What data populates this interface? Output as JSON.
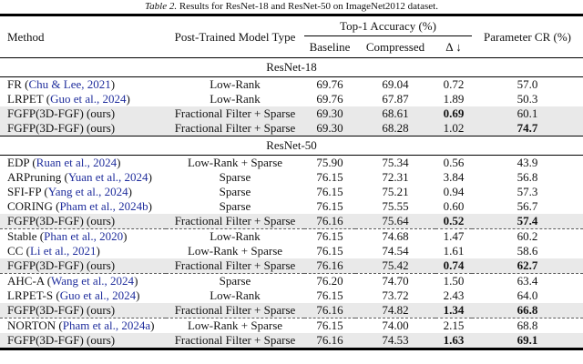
{
  "caption": {
    "label": "Table 2.",
    "text": "Results for ResNet-18 and ResNet-50 on ImageNet2012 dataset."
  },
  "colors": {
    "citation_link": "#1F2D9C",
    "highlight_row": "#E9E9E9",
    "rule": "#000000"
  },
  "table": {
    "columns": {
      "method": "Method",
      "type": "Post-Trained Model Type",
      "top1_group": "Top-1 Accuracy (%)",
      "baseline": "Baseline",
      "compressed": "Compressed",
      "delta": "Δ ↓",
      "cr": "Parameter CR (%)"
    },
    "sections": [
      {
        "title": "ResNet-18",
        "rows": [
          {
            "method": "FR",
            "cite": "Chu & Lee, 2021",
            "type": "Low-Rank",
            "baseline": "69.76",
            "compressed": "69.04",
            "delta": "0.72",
            "cr": "57.0",
            "highlight": false,
            "bold_delta": false,
            "bold_cr": false,
            "dashed_after": false
          },
          {
            "method": "LRPET",
            "cite": "Guo et al., 2024",
            "type": "Low-Rank",
            "baseline": "69.76",
            "compressed": "67.87",
            "delta": "1.89",
            "cr": "50.3",
            "highlight": false,
            "bold_delta": false,
            "bold_cr": false,
            "dashed_after": false
          },
          {
            "method": "FGFP(3D-FGF) (ours)",
            "cite": null,
            "type": "Fractional Filter + Sparse",
            "baseline": "69.30",
            "compressed": "68.61",
            "delta": "0.69",
            "cr": "60.1",
            "highlight": true,
            "bold_delta": true,
            "bold_cr": false,
            "dashed_after": false
          },
          {
            "method": "FGFP(3D-FGF) (ours)",
            "cite": null,
            "type": "Fractional Filter + Sparse",
            "baseline": "69.30",
            "compressed": "68.28",
            "delta": "1.02",
            "cr": "74.7",
            "highlight": true,
            "bold_delta": false,
            "bold_cr": true,
            "dashed_after": false
          }
        ]
      },
      {
        "title": "ResNet-50",
        "rows": [
          {
            "method": "EDP",
            "cite": "Ruan et al., 2024",
            "type": "Low-Rank + Sparse",
            "baseline": "75.90",
            "compressed": "75.34",
            "delta": "0.56",
            "cr": "43.9",
            "highlight": false,
            "bold_delta": false,
            "bold_cr": false,
            "dashed_after": false
          },
          {
            "method": "ARPruning",
            "cite": "Yuan et al., 2024",
            "type": "Sparse",
            "baseline": "76.15",
            "compressed": "72.31",
            "delta": "3.84",
            "cr": "56.8",
            "highlight": false,
            "bold_delta": false,
            "bold_cr": false,
            "dashed_after": false
          },
          {
            "method": "SFI-FP",
            "cite": "Yang et al., 2024",
            "type": "Sparse",
            "baseline": "76.15",
            "compressed": "75.21",
            "delta": "0.94",
            "cr": "57.3",
            "highlight": false,
            "bold_delta": false,
            "bold_cr": false,
            "dashed_after": false
          },
          {
            "method": "CORING",
            "cite": "Pham et al., 2024b",
            "type": "Sparse",
            "baseline": "76.15",
            "compressed": "75.55",
            "delta": "0.60",
            "cr": "56.7",
            "highlight": false,
            "bold_delta": false,
            "bold_cr": false,
            "dashed_after": false
          },
          {
            "method": "FGFP(3D-FGF) (ours)",
            "cite": null,
            "type": "Fractional Filter + Sparse",
            "baseline": "76.16",
            "compressed": "75.64",
            "delta": "0.52",
            "cr": "57.4",
            "highlight": true,
            "bold_delta": true,
            "bold_cr": true,
            "dashed_after": true
          },
          {
            "method": "Stable",
            "cite": "Phan et al., 2020",
            "type": "Low-Rank",
            "baseline": "76.15",
            "compressed": "74.68",
            "delta": "1.47",
            "cr": "60.2",
            "highlight": false,
            "bold_delta": false,
            "bold_cr": false,
            "dashed_after": false
          },
          {
            "method": "CC",
            "cite": "Li et al., 2021",
            "type": "Low-Rank + Sparse",
            "baseline": "76.15",
            "compressed": "74.54",
            "delta": "1.61",
            "cr": "58.6",
            "highlight": false,
            "bold_delta": false,
            "bold_cr": false,
            "dashed_after": false
          },
          {
            "method": "FGFP(3D-FGF) (ours)",
            "cite": null,
            "type": "Fractional Filter + Sparse",
            "baseline": "76.16",
            "compressed": "75.42",
            "delta": "0.74",
            "cr": "62.7",
            "highlight": true,
            "bold_delta": true,
            "bold_cr": true,
            "dashed_after": true
          },
          {
            "method": "AHC-A",
            "cite": "Wang et al., 2024",
            "type": "Sparse",
            "baseline": "76.20",
            "compressed": "74.70",
            "delta": "1.50",
            "cr": "63.4",
            "highlight": false,
            "bold_delta": false,
            "bold_cr": false,
            "dashed_after": false
          },
          {
            "method": "LRPET-S",
            "cite": "Guo et al., 2024",
            "type": "Low-Rank",
            "baseline": "76.15",
            "compressed": "73.72",
            "delta": "2.43",
            "cr": "64.0",
            "highlight": false,
            "bold_delta": false,
            "bold_cr": false,
            "dashed_after": false
          },
          {
            "method": "FGFP(3D-FGF) (ours)",
            "cite": null,
            "type": "Fractional Filter + Sparse",
            "baseline": "76.16",
            "compressed": "74.82",
            "delta": "1.34",
            "cr": "66.8",
            "highlight": true,
            "bold_delta": true,
            "bold_cr": true,
            "dashed_after": true
          },
          {
            "method": "NORTON",
            "cite": "Pham et al., 2024a",
            "type": "Low-Rank + Sparse",
            "baseline": "76.15",
            "compressed": "74.00",
            "delta": "2.15",
            "cr": "68.8",
            "highlight": false,
            "bold_delta": false,
            "bold_cr": false,
            "dashed_after": false
          },
          {
            "method": "FGFP(3D-FGF) (ours)",
            "cite": null,
            "type": "Fractional Filter + Sparse",
            "baseline": "76.16",
            "compressed": "74.53",
            "delta": "1.63",
            "cr": "69.1",
            "highlight": true,
            "bold_delta": true,
            "bold_cr": true,
            "dashed_after": false
          }
        ]
      }
    ]
  }
}
